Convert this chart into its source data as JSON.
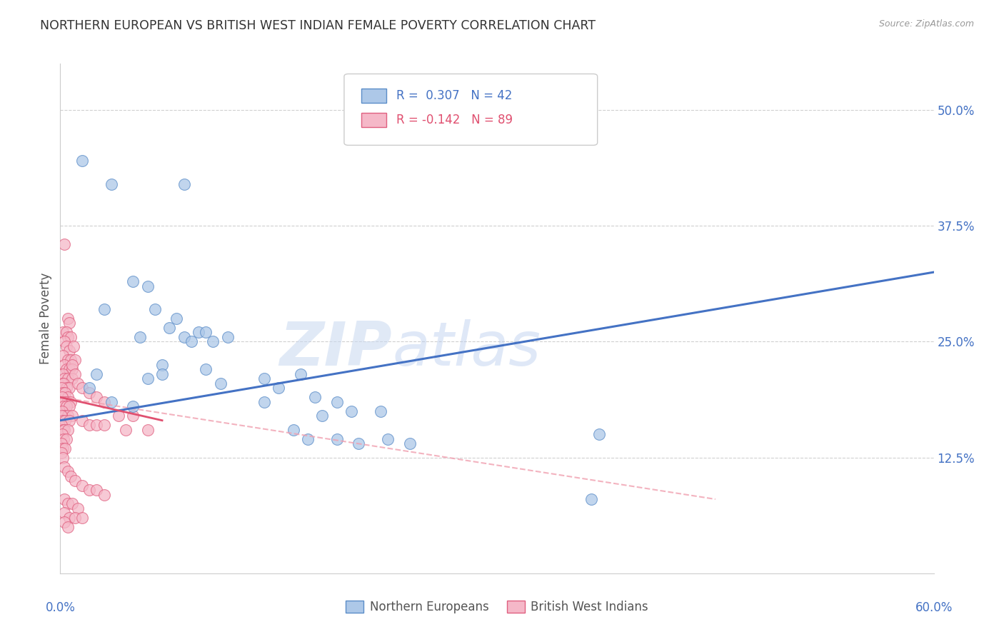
{
  "title": "NORTHERN EUROPEAN VS BRITISH WEST INDIAN FEMALE POVERTY CORRELATION CHART",
  "source": "Source: ZipAtlas.com",
  "ylabel": "Female Poverty",
  "x_tick_labels_bottom": [
    "0.0%",
    "60.0%"
  ],
  "x_tick_vals_bottom": [
    0,
    60
  ],
  "x_tick_vals_top": [
    0,
    10,
    20,
    30,
    40,
    50,
    60
  ],
  "y_tick_vals": [
    12.5,
    25.0,
    37.5,
    50.0
  ],
  "xlim": [
    0,
    60
  ],
  "ylim": [
    0,
    55
  ],
  "blue_color": "#adc8e8",
  "blue_edge": "#5b8dc8",
  "pink_color": "#f5b8c8",
  "pink_edge": "#e06080",
  "trendline_blue": "#4472c4",
  "trendline_pink_solid": "#e05070",
  "trendline_pink_dash": "#f0a0b0",
  "legend_color1": "#4472c4",
  "legend_color2": "#e05070",
  "legend_label1": "Northern Europeans",
  "legend_label2": "British West Indians",
  "watermark1": "ZIP",
  "watermark2": "atlas",
  "background": "#ffffff",
  "grid_color": "#d0d0d0",
  "blue_trendline": [
    [
      0,
      16.5
    ],
    [
      60,
      32.5
    ]
  ],
  "pink_trendline_solid": [
    [
      0,
      19.0
    ],
    [
      7.0,
      16.5
    ]
  ],
  "pink_trendline_dash": [
    [
      0,
      19.0
    ],
    [
      45,
      8.0
    ]
  ],
  "blue_points": [
    [
      1.5,
      44.5
    ],
    [
      3.5,
      42.0
    ],
    [
      8.5,
      42.0
    ],
    [
      5.0,
      31.5
    ],
    [
      6.0,
      31.0
    ],
    [
      3.0,
      28.5
    ],
    [
      6.5,
      28.5
    ],
    [
      8.0,
      27.5
    ],
    [
      7.5,
      26.5
    ],
    [
      9.5,
      26.0
    ],
    [
      10.0,
      26.0
    ],
    [
      5.5,
      25.5
    ],
    [
      8.5,
      25.5
    ],
    [
      9.0,
      25.0
    ],
    [
      10.5,
      25.0
    ],
    [
      11.5,
      25.5
    ],
    [
      7.0,
      22.5
    ],
    [
      10.0,
      22.0
    ],
    [
      2.5,
      21.5
    ],
    [
      6.0,
      21.0
    ],
    [
      7.0,
      21.5
    ],
    [
      14.0,
      21.0
    ],
    [
      16.5,
      21.5
    ],
    [
      2.0,
      20.0
    ],
    [
      11.0,
      20.5
    ],
    [
      15.0,
      20.0
    ],
    [
      3.5,
      18.5
    ],
    [
      5.0,
      18.0
    ],
    [
      14.0,
      18.5
    ],
    [
      17.5,
      19.0
    ],
    [
      19.0,
      18.5
    ],
    [
      18.0,
      17.0
    ],
    [
      20.0,
      17.5
    ],
    [
      22.0,
      17.5
    ],
    [
      16.0,
      15.5
    ],
    [
      17.0,
      14.5
    ],
    [
      19.0,
      14.5
    ],
    [
      20.5,
      14.0
    ],
    [
      22.5,
      14.5
    ],
    [
      24.0,
      14.0
    ],
    [
      37.0,
      15.0
    ],
    [
      36.5,
      8.0
    ]
  ],
  "pink_points": [
    [
      0.3,
      35.5
    ],
    [
      0.5,
      27.5
    ],
    [
      0.6,
      27.0
    ],
    [
      0.2,
      26.0
    ],
    [
      0.4,
      26.0
    ],
    [
      0.5,
      25.5
    ],
    [
      0.7,
      25.5
    ],
    [
      0.3,
      25.0
    ],
    [
      0.4,
      24.5
    ],
    [
      0.6,
      24.0
    ],
    [
      0.9,
      24.5
    ],
    [
      0.2,
      23.5
    ],
    [
      0.5,
      23.0
    ],
    [
      0.7,
      23.0
    ],
    [
      1.0,
      23.0
    ],
    [
      0.3,
      22.5
    ],
    [
      0.4,
      22.0
    ],
    [
      0.6,
      22.0
    ],
    [
      0.8,
      22.0
    ],
    [
      0.2,
      21.5
    ],
    [
      0.3,
      21.0
    ],
    [
      0.5,
      21.0
    ],
    [
      0.8,
      21.0
    ],
    [
      0.15,
      20.5
    ],
    [
      0.25,
      20.5
    ],
    [
      0.4,
      20.0
    ],
    [
      0.6,
      20.0
    ],
    [
      0.1,
      20.0
    ],
    [
      0.2,
      19.5
    ],
    [
      0.35,
      19.5
    ],
    [
      0.5,
      19.0
    ],
    [
      0.15,
      19.0
    ],
    [
      0.3,
      18.5
    ],
    [
      0.45,
      18.5
    ],
    [
      0.7,
      18.5
    ],
    [
      0.1,
      18.5
    ],
    [
      0.25,
      18.0
    ],
    [
      0.4,
      18.0
    ],
    [
      0.6,
      18.0
    ],
    [
      0.15,
      17.5
    ],
    [
      0.3,
      17.0
    ],
    [
      0.5,
      17.0
    ],
    [
      0.8,
      17.0
    ],
    [
      0.1,
      17.0
    ],
    [
      0.2,
      16.5
    ],
    [
      0.35,
      16.5
    ],
    [
      0.6,
      16.5
    ],
    [
      0.1,
      16.0
    ],
    [
      0.2,
      15.5
    ],
    [
      0.3,
      15.5
    ],
    [
      0.5,
      15.5
    ],
    [
      0.15,
      15.0
    ],
    [
      0.25,
      14.5
    ],
    [
      0.4,
      14.5
    ],
    [
      0.1,
      14.0
    ],
    [
      0.2,
      13.5
    ],
    [
      0.35,
      13.5
    ],
    [
      0.1,
      13.0
    ],
    [
      0.2,
      12.5
    ],
    [
      0.8,
      22.5
    ],
    [
      1.0,
      21.5
    ],
    [
      1.2,
      20.5
    ],
    [
      1.5,
      20.0
    ],
    [
      2.0,
      19.5
    ],
    [
      2.5,
      19.0
    ],
    [
      3.0,
      18.5
    ],
    [
      4.0,
      17.0
    ],
    [
      5.0,
      17.0
    ],
    [
      1.5,
      16.5
    ],
    [
      2.0,
      16.0
    ],
    [
      2.5,
      16.0
    ],
    [
      3.0,
      16.0
    ],
    [
      4.5,
      15.5
    ],
    [
      6.0,
      15.5
    ],
    [
      0.3,
      11.5
    ],
    [
      0.5,
      11.0
    ],
    [
      0.7,
      10.5
    ],
    [
      1.0,
      10.0
    ],
    [
      1.5,
      9.5
    ],
    [
      2.0,
      9.0
    ],
    [
      2.5,
      9.0
    ],
    [
      3.0,
      8.5
    ],
    [
      0.3,
      8.0
    ],
    [
      0.5,
      7.5
    ],
    [
      0.8,
      7.5
    ],
    [
      1.2,
      7.0
    ],
    [
      0.3,
      6.5
    ],
    [
      0.6,
      6.0
    ],
    [
      1.0,
      6.0
    ],
    [
      1.5,
      6.0
    ],
    [
      0.3,
      5.5
    ],
    [
      0.5,
      5.0
    ]
  ]
}
